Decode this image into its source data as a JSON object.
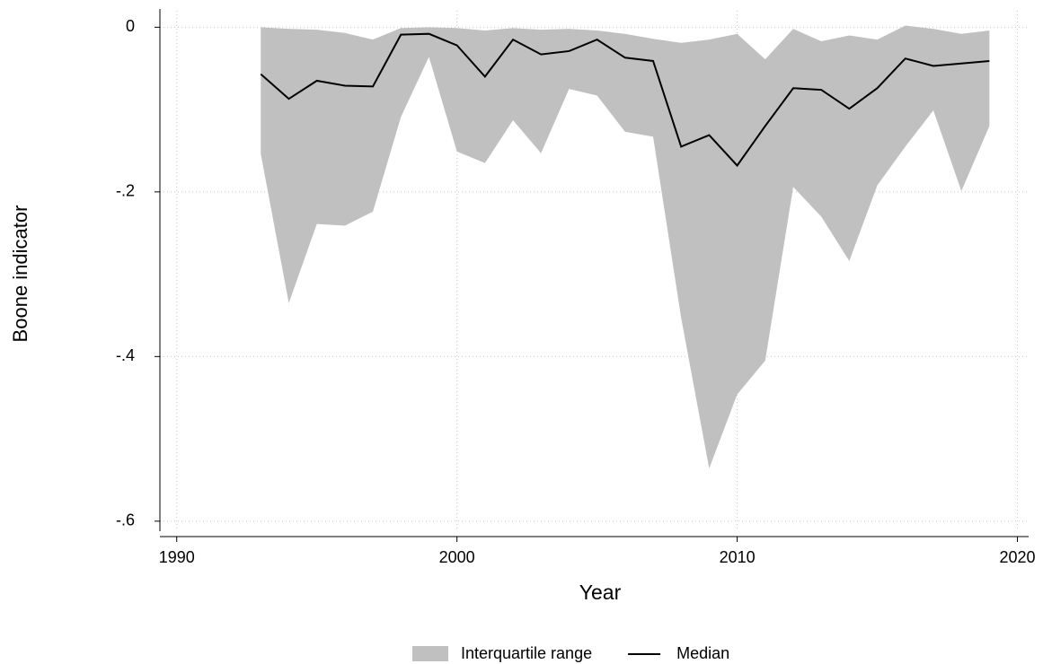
{
  "chart_data": {
    "type": "line",
    "x_label": "Year",
    "y_label": "Boone indicator",
    "x": [
      1993,
      1994,
      1995,
      1996,
      1997,
      1998,
      1999,
      2000,
      2001,
      2002,
      2003,
      2004,
      2005,
      2006,
      2007,
      2008,
      2009,
      2010,
      2011,
      2012,
      2013,
      2014,
      2015,
      2016,
      2017,
      2018,
      2019
    ],
    "series": [
      {
        "name": "Interquartile range",
        "color": "#c0c0c0",
        "type": "range",
        "high": [
          0,
          -0.002,
          -0.003,
          -0.007,
          -0.015,
          -0.001,
          0,
          -0.001,
          -0.004,
          -0.001,
          -0.003,
          -0.002,
          -0.004,
          -0.008,
          -0.014,
          -0.019,
          -0.015,
          -0.008,
          -0.039,
          -0.002,
          -0.017,
          -0.01,
          -0.015,
          0.002,
          -0.002,
          -0.008,
          -0.004
        ],
        "low": [
          -0.154,
          -0.335,
          -0.239,
          -0.241,
          -0.224,
          -0.109,
          -0.036,
          -0.151,
          -0.165,
          -0.113,
          -0.153,
          -0.075,
          -0.083,
          -0.127,
          -0.133,
          -0.353,
          -0.536,
          -0.446,
          -0.405,
          -0.194,
          -0.23,
          -0.284,
          -0.192,
          -0.145,
          -0.101,
          -0.199,
          -0.12
        ]
      },
      {
        "name": "Median",
        "color": "#000000",
        "type": "line",
        "values": [
          -0.057,
          -0.087,
          -0.065,
          -0.071,
          -0.072,
          -0.009,
          -0.008,
          -0.022,
          -0.06,
          -0.015,
          -0.033,
          -0.029,
          -0.015,
          -0.037,
          -0.041,
          -0.145,
          -0.131,
          -0.168,
          -0.12,
          -0.074,
          -0.076,
          -0.099,
          -0.074,
          -0.038,
          -0.047,
          -0.044,
          -0.041
        ]
      }
    ],
    "xlim": [
      1989.4,
      2020.4
    ],
    "xticks": [
      1990,
      2000,
      2010,
      2020
    ],
    "ylim": [
      -0.61,
      0.02
    ],
    "yticks": [
      {
        "value": 0,
        "label": "0"
      },
      {
        "value": -0.2,
        "label": "-.2"
      },
      {
        "value": -0.4,
        "label": "-.4"
      },
      {
        "value": -0.6,
        "label": "-.6"
      }
    ],
    "grid": true
  }
}
